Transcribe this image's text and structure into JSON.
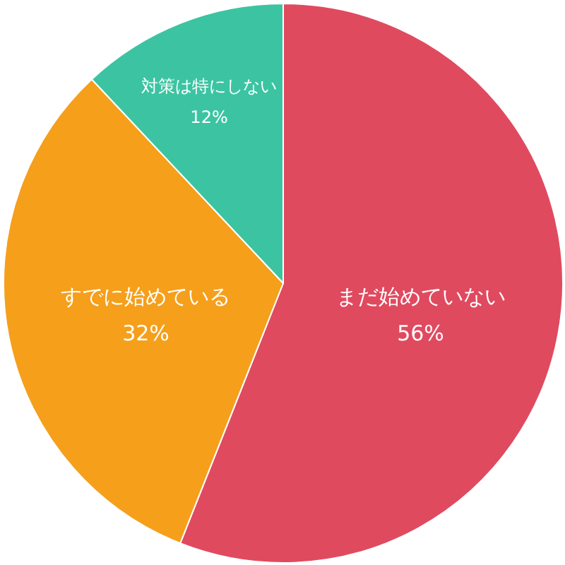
{
  "chart_data": {
    "type": "pie",
    "categories": [
      "まだ始めていない",
      "すでに始めている",
      "対策は特にしない"
    ],
    "values": [
      56,
      32,
      12
    ],
    "value_labels": [
      "56%",
      "32%",
      "12%"
    ],
    "colors": [
      "#e04a5f",
      "#f59f1b",
      "#3cc4a2"
    ]
  }
}
